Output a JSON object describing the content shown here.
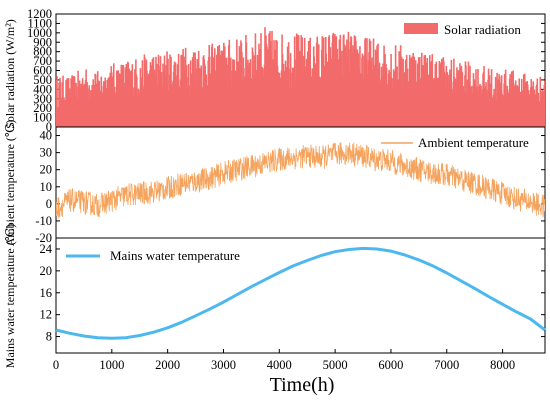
{
  "chart_data": [
    {
      "type": "area",
      "series": [
        {
          "name": "Solar radiation",
          "color": "#F26B6B",
          "x": [
            0,
            250,
            500,
            750,
            1000,
            1250,
            1500,
            1750,
            2000,
            2250,
            2500,
            2750,
            3000,
            3250,
            3500,
            3750,
            4000,
            4250,
            4500,
            4750,
            5000,
            5250,
            5500,
            5750,
            6000,
            6250,
            6500,
            6750,
            7000,
            7250,
            7500,
            7750,
            8000,
            8250,
            8500,
            8760
          ],
          "daily_peak": [
            560,
            540,
            640,
            600,
            680,
            720,
            760,
            800,
            820,
            850,
            900,
            880,
            930,
            960,
            1000,
            1070,
            1000,
            1030,
            960,
            1000,
            1040,
            1020,
            980,
            940,
            900,
            880,
            840,
            800,
            760,
            720,
            680,
            640,
            620,
            600,
            560,
            540
          ]
        }
      ],
      "ylabel": "Solar radiation (W/m²)",
      "ylim": [
        0,
        1200
      ],
      "yticks": [
        0,
        100,
        200,
        300,
        400,
        500,
        600,
        700,
        800,
        900,
        1000,
        1100,
        1200
      ],
      "xlim": [
        0,
        8760
      ],
      "legend": "top-right"
    },
    {
      "type": "line",
      "series": [
        {
          "name": "Ambient temperature",
          "color": "#F5A35C",
          "x": [
            0,
            250,
            500,
            750,
            1000,
            1250,
            1500,
            1750,
            2000,
            2250,
            2500,
            2750,
            3000,
            3250,
            3500,
            3750,
            4000,
            4250,
            4500,
            4750,
            5000,
            5250,
            5500,
            5750,
            6000,
            6250,
            6500,
            6750,
            7000,
            7250,
            7500,
            7750,
            8000,
            8250,
            8500,
            8760
          ],
          "y": [
            -3,
            2,
            1,
            -1,
            2,
            5,
            6,
            7,
            9,
            12,
            13,
            15,
            18,
            20,
            22,
            24,
            26,
            27,
            28,
            27,
            29,
            30,
            28,
            26,
            25,
            22,
            20,
            18,
            17,
            14,
            12,
            9,
            6,
            3,
            1,
            -2
          ]
        }
      ],
      "ylabel": "Ambient temperature (℃)",
      "ylim": [
        -20,
        45
      ],
      "yticks": [
        -20,
        -10,
        0,
        10,
        20,
        30,
        40
      ],
      "xlim": [
        0,
        8760
      ],
      "legend": "top-right"
    },
    {
      "type": "line",
      "series": [
        {
          "name": "Mains water temperature",
          "color": "#4DB8F0",
          "x": [
            0,
            250,
            500,
            750,
            1000,
            1250,
            1500,
            1750,
            2000,
            2250,
            2500,
            2750,
            3000,
            3250,
            3500,
            3750,
            4000,
            4250,
            4500,
            4750,
            5000,
            5250,
            5500,
            5750,
            6000,
            6250,
            6500,
            6750,
            7000,
            7250,
            7500,
            7750,
            8000,
            8250,
            8500,
            8760
          ],
          "y": [
            9.2,
            8.6,
            8.1,
            7.8,
            7.7,
            7.8,
            8.2,
            8.8,
            9.6,
            10.6,
            11.8,
            13.0,
            14.3,
            15.7,
            17.1,
            18.4,
            19.7,
            20.9,
            21.9,
            22.8,
            23.5,
            23.9,
            24.1,
            24.0,
            23.6,
            22.9,
            22.0,
            20.9,
            19.6,
            18.2,
            16.8,
            15.3,
            13.9,
            12.5,
            11.2,
            9.2
          ]
        }
      ],
      "ylabel": "Mains water temperature (℃)",
      "ylim": [
        5,
        26
      ],
      "yticks": [
        8,
        12,
        16,
        20,
        24
      ],
      "xlim": [
        0,
        8760
      ],
      "legend": "top-left"
    }
  ],
  "axes": {
    "xticks": [
      "0",
      "1000",
      "2000",
      "3000",
      "4000",
      "5000",
      "6000",
      "7000",
      "8000"
    ],
    "xlabel": "Time(h)"
  }
}
